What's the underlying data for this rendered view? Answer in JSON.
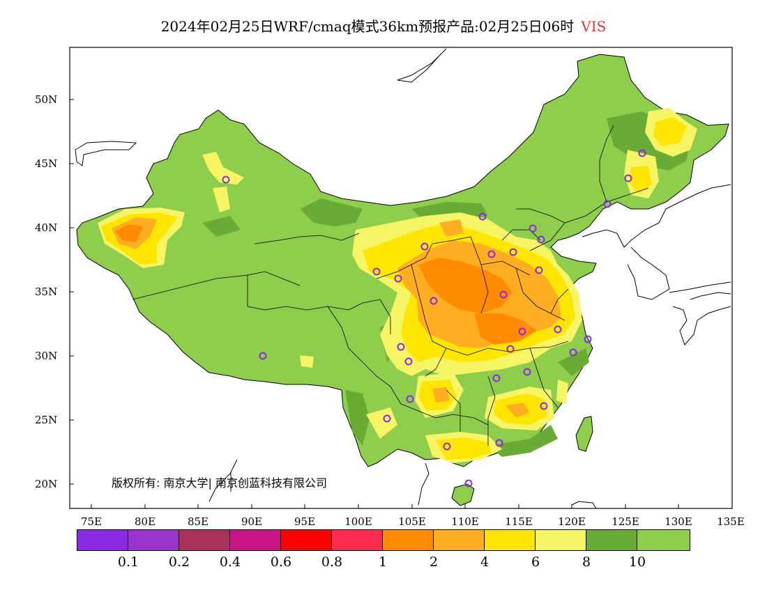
{
  "header": {
    "title": "2024年02月25日WRF/cmaq模式36km预报产品:02月25日06时",
    "variable": "VIS"
  },
  "axes": {
    "lat_labels": [
      "50N",
      "45N",
      "40N",
      "35N",
      "30N",
      "25N",
      "20N"
    ],
    "lon_labels": [
      "75E",
      "80E",
      "85E",
      "90E",
      "95E",
      "100E",
      "105E",
      "110E",
      "115E",
      "120E",
      "125E",
      "130E",
      "135E"
    ],
    "lon_range": [
      73,
      135
    ],
    "lat_range": [
      18,
      54
    ]
  },
  "copyright": "版权所有: 南京大学| 南京创蓝科技有限公司",
  "legend": {
    "colors": [
      "#8a2be2",
      "#9a32cd",
      "#a8325a",
      "#c71585",
      "#ff0000",
      "#ff2a50",
      "#ff8c00",
      "#ffad21",
      "#ffe600",
      "#f5f566",
      "#6aab35",
      "#8fcd4c"
    ],
    "labels": [
      "0.1",
      "0.2",
      "0.4",
      "0.6",
      "0.8",
      "1",
      "2",
      "4",
      "6",
      "8",
      "10"
    ]
  },
  "palette": {
    "base": "#8fcd4c",
    "dark_green": "#6aab35",
    "light_yellow": "#f5f566",
    "yellow": "#ffe600",
    "orange_light": "#ffad21",
    "orange": "#ff8c00",
    "station_marker": "#8a2be2"
  }
}
